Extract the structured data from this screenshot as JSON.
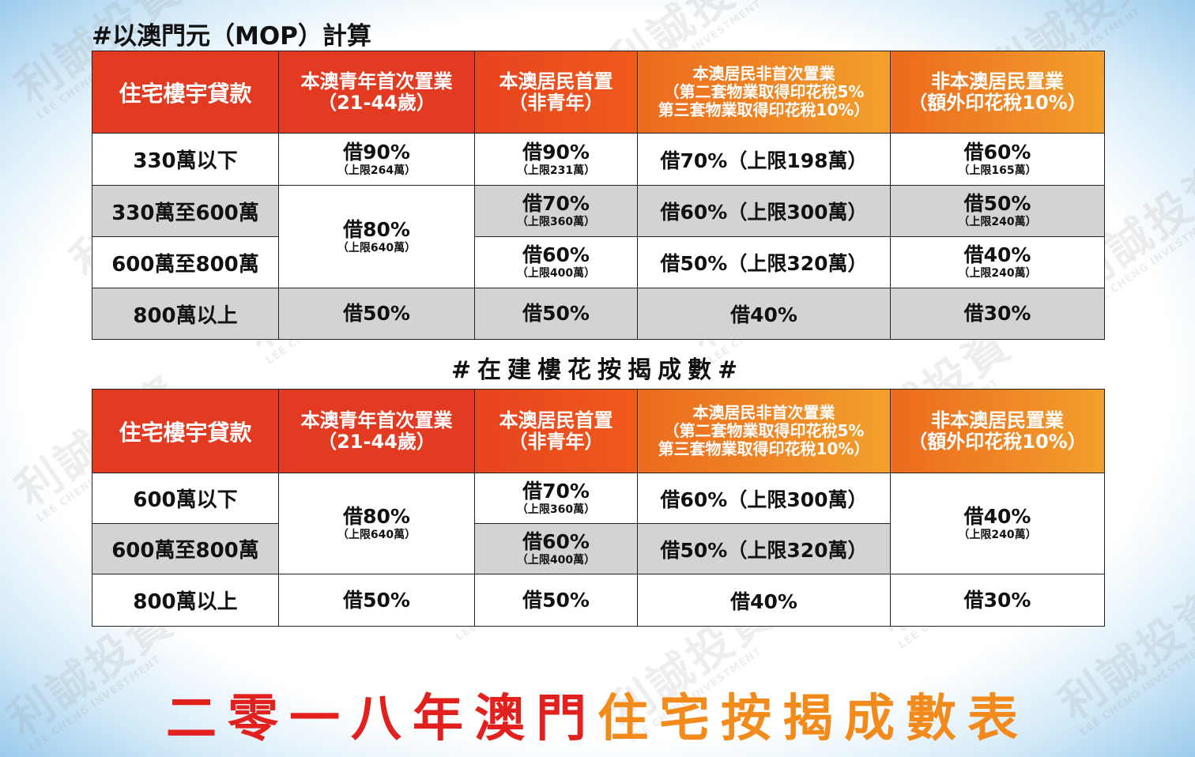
{
  "heading_mop": "#以澳門元（MOP）計算",
  "heading_mid": "#在建樓花按揭成數#",
  "watermark": {
    "cn": "利誠投資",
    "en": "LEE CHENG INVESTMENT"
  },
  "headers": {
    "corner": "住宅樓宇貸款",
    "youth": [
      "本澳青年首次置業",
      "（21-44歲）"
    ],
    "resident": [
      "本澳居民首置",
      "（非青年）"
    ],
    "nonfirst": [
      "本澳居民非首次置業",
      "（第二套物業取得印花稅5%",
      "第三套物業取得印花稅10%）"
    ],
    "nonresident": [
      "非本澳居民置業",
      "（額外印花稅10%）"
    ]
  },
  "table1": {
    "rows": [
      "330萬以下",
      "330萬至600萬",
      "600萬至800萬",
      "800萬以上"
    ],
    "youth": [
      {
        "main": "借90%",
        "cap": "（上限264萬）"
      },
      {
        "main": "借80%",
        "cap": "（上限640萬）"
      },
      {
        "main": "借50%"
      }
    ],
    "resident": [
      {
        "main": "借90%",
        "cap": "（上限231萬）"
      },
      {
        "main": "借70%",
        "cap": "（上限360萬）"
      },
      {
        "main": "借60%",
        "cap": "（上限400萬）"
      },
      {
        "main": "借50%"
      }
    ],
    "nonfirst": [
      "借70%（上限198萬）",
      "借60%（上限300萬）",
      "借50%（上限320萬）",
      "借40%"
    ],
    "nonresident": [
      {
        "main": "借60%",
        "cap": "（上限165萬）"
      },
      {
        "main": "借50%",
        "cap": "（上限240萬）"
      },
      {
        "main": "借40%",
        "cap": "（上限240萬）"
      },
      {
        "main": "借30%"
      }
    ]
  },
  "table2": {
    "rows": [
      "600萬以下",
      "600萬至800萬",
      "800萬以上"
    ],
    "youth": [
      {
        "main": "借80%",
        "cap": "（上限640萬）"
      },
      {
        "main": "借50%"
      }
    ],
    "resident": [
      {
        "main": "借70%",
        "cap": "（上限360萬）"
      },
      {
        "main": "借60%",
        "cap": "（上限400萬）"
      },
      {
        "main": "借50%"
      }
    ],
    "nonfirst": [
      "借60%（上限300萬）",
      "借50%（上限320萬）",
      "借40%"
    ],
    "nonresident": [
      {
        "main": "借40%",
        "cap": "（上限240萬）"
      },
      {
        "main": "借30%"
      }
    ]
  },
  "footer": {
    "part1": "二零一八年澳門",
    "part2": "住宅按揭成數表"
  },
  "colors": {
    "red": "#e23b22",
    "orange": "#f2a02d",
    "gray": "#d3d3d3",
    "footer_red": "#e2201d",
    "footer_orange": "#f28b1c"
  }
}
